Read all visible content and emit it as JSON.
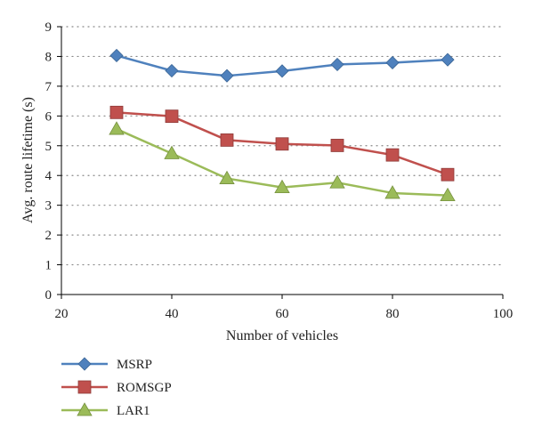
{
  "chart_data": {
    "type": "line",
    "title": "",
    "xlabel": "Number of vehicles",
    "ylabel": "Avg. route lifetime (s)",
    "xlim": [
      20,
      100
    ],
    "ylim": [
      0,
      9
    ],
    "xticks": [
      20,
      40,
      60,
      80,
      100
    ],
    "yticks": [
      0,
      1,
      2,
      3,
      4,
      5,
      6,
      7,
      8,
      9
    ],
    "grid": "horizontal dotted",
    "legend_position": "bottom-left",
    "x": [
      30,
      40,
      50,
      60,
      70,
      80,
      90
    ],
    "series": [
      {
        "name": "MSRP",
        "values": [
          8.03,
          7.52,
          7.35,
          7.51,
          7.73,
          7.79,
          7.89
        ],
        "color": "#4f81bd",
        "marker": "diamond"
      },
      {
        "name": "ROMSGP",
        "values": [
          6.12,
          5.99,
          5.19,
          5.06,
          5.01,
          4.69,
          4.03
        ],
        "color": "#c0504d",
        "marker": "square"
      },
      {
        "name": "LAR1",
        "values": [
          5.56,
          4.74,
          3.9,
          3.6,
          3.76,
          3.41,
          3.33
        ],
        "color": "#9bbb59",
        "marker": "triangle"
      }
    ]
  }
}
